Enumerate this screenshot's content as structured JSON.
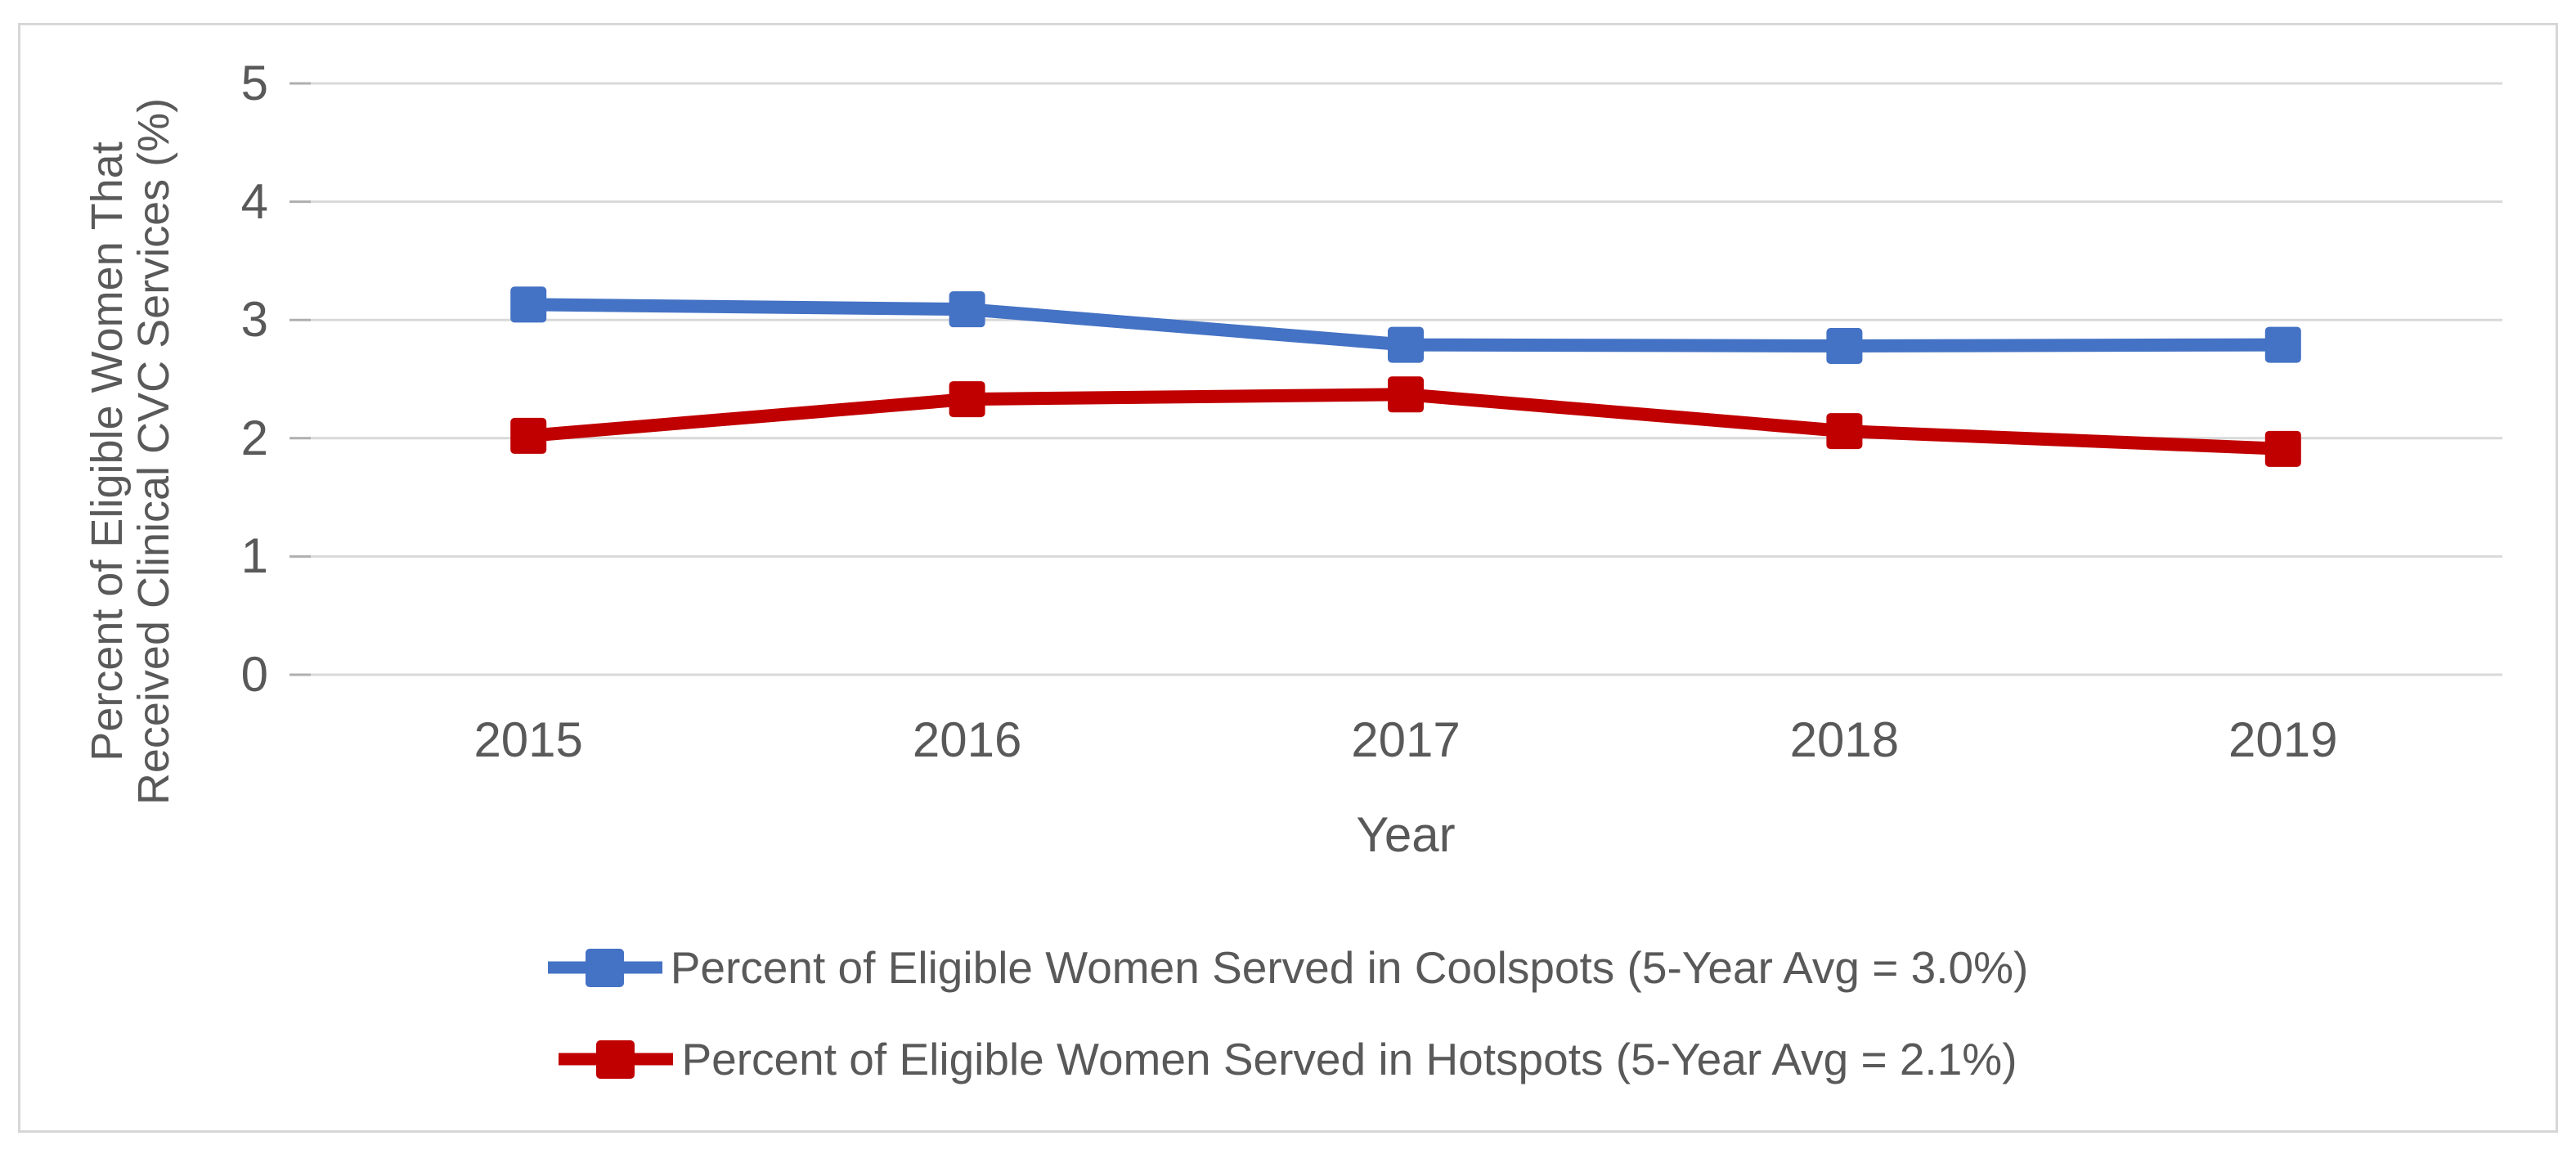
{
  "chart": {
    "y_axis": {
      "title_line1": "Percent of Eligible Women That",
      "title_line2": "Received Clinical CVC Services (%)",
      "ticks": [
        5,
        4,
        3,
        2,
        1,
        0
      ]
    },
    "x_axis": {
      "title": "Year"
    }
  },
  "chart_data": {
    "type": "line",
    "title": "",
    "categories": [
      "2015",
      "2016",
      "2017",
      "2018",
      "2019"
    ],
    "series": [
      {
        "name": "Coolspots",
        "legend_label": "Percent of Eligible Women Served in Coolspots (5-Year Avg = 3.0%)",
        "color": "#4472C4",
        "marker": "square",
        "values": [
          3.13,
          3.09,
          2.79,
          2.78,
          2.79
        ]
      },
      {
        "name": "Hotspots",
        "legend_label": "Percent of Eligible Women Served in Hotspots (5-Year Avg = 2.1%)",
        "color": "#C00000",
        "marker": "square",
        "values": [
          2.02,
          2.33,
          2.37,
          2.06,
          1.91
        ]
      }
    ],
    "xlabel": "Year",
    "ylabel": "Percent of Eligible Women That Received Clinical CVC Services (%)",
    "ylim": [
      0,
      5
    ],
    "y_tick_step": 1,
    "grid": true,
    "gridline_color": "#D9D9D9",
    "axis_text_color": "#595959",
    "legend_position": "bottom"
  }
}
